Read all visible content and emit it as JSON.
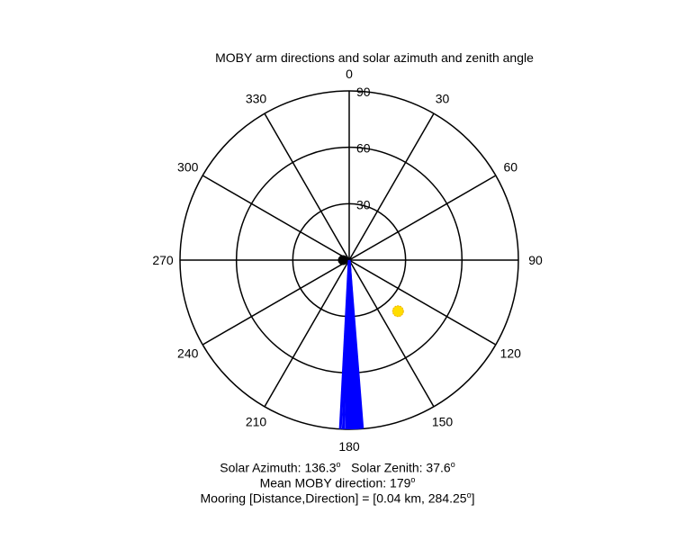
{
  "chart_data": {
    "type": "polar",
    "title": "MOBY arm directions and solar azimuth and zenith angle",
    "angle_ticks": [
      {
        "deg": 0,
        "label": "0"
      },
      {
        "deg": 30,
        "label": "30"
      },
      {
        "deg": 60,
        "label": "60"
      },
      {
        "deg": 90,
        "label": "90"
      },
      {
        "deg": 120,
        "label": "120"
      },
      {
        "deg": 150,
        "label": "150"
      },
      {
        "deg": 180,
        "label": "180"
      },
      {
        "deg": 210,
        "label": "210"
      },
      {
        "deg": 240,
        "label": "240"
      },
      {
        "deg": 270,
        "label": "270"
      },
      {
        "deg": 300,
        "label": "300"
      },
      {
        "deg": 330,
        "label": "330"
      }
    ],
    "radial_ticks": [
      {
        "value": 30,
        "label": "30"
      },
      {
        "value": 60,
        "label": "60"
      },
      {
        "value": 90,
        "label": "90"
      }
    ],
    "rmax": 90,
    "arm_directions_deg": [
      175.5,
      176.0,
      176.5,
      177.0,
      177.5,
      178.0,
      178.5,
      179.0,
      179.5,
      180.0,
      180.5,
      181.0,
      182.0,
      183.0
    ],
    "arm_color": "#0000ff",
    "sun": {
      "azimuth": 136.3,
      "zenith": 37.6,
      "color": "#ffdd00"
    },
    "center_marker_color": "#000000"
  },
  "captions": {
    "solar_azimuth_label": "Solar Azimuth: 136.3",
    "solar_zenith_label": "Solar Zenith: 37.6",
    "degree_symbol": "o",
    "mean_direction_label": "Mean MOBY direction: 179",
    "mooring_label": "Mooring [Distance,Direction] = [0.04 km, 284.25",
    "mooring_degree_symbol": "o",
    "mooring_close": "]"
  }
}
